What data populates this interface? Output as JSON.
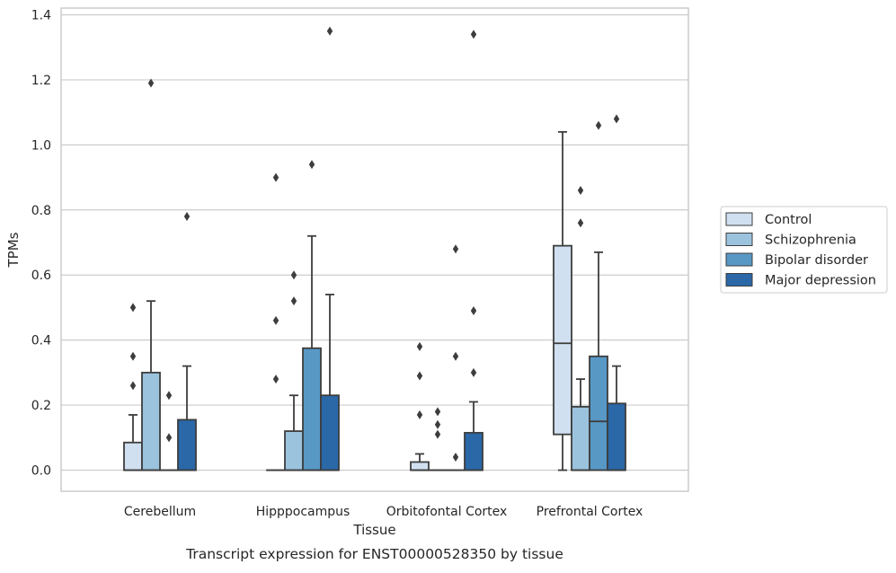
{
  "chart_data": {
    "type": "box",
    "title": "",
    "caption": "Transcript expression for ENST00000528350 by tissue",
    "xlabel": "Tissue",
    "ylabel": "TPMs",
    "ylim": [
      -0.065,
      1.42
    ],
    "yticks": [
      "0.0",
      "0.2",
      "0.4",
      "0.6",
      "0.8",
      "1.0",
      "1.2",
      "1.4"
    ],
    "grid": "horizontal",
    "legend_position": "right",
    "categories": [
      "Cerebellum",
      "Hipppocampus",
      "Orbitofontal Cortex",
      "Prefrontal Cortex"
    ],
    "series": [
      {
        "name": "Control",
        "color": "#d0e0f0",
        "boxes": [
          {
            "q1": 0.0,
            "median": 0.0,
            "q3": 0.085,
            "whisker_low": 0.0,
            "whisker_high": 0.17,
            "outliers": [
              0.26,
              0.35,
              0.5
            ]
          },
          {
            "q1": 0.0,
            "median": 0.0,
            "q3": 0.0,
            "whisker_low": 0.0,
            "whisker_high": 0.0,
            "outliers": [
              0.28,
              0.46,
              0.9
            ]
          },
          {
            "q1": 0.0,
            "median": 0.0,
            "q3": 0.025,
            "whisker_low": 0.0,
            "whisker_high": 0.05,
            "outliers": [
              0.17,
              0.29,
              0.38
            ]
          },
          {
            "q1": 0.11,
            "median": 0.39,
            "q3": 0.69,
            "whisker_low": 0.0,
            "whisker_high": 1.04,
            "outliers": []
          }
        ]
      },
      {
        "name": "Schizophrenia",
        "color": "#9bc3de",
        "boxes": [
          {
            "q1": 0.0,
            "median": 0.0,
            "q3": 0.3,
            "whisker_low": 0.0,
            "whisker_high": 0.52,
            "outliers": [
              1.19
            ]
          },
          {
            "q1": 0.0,
            "median": 0.0,
            "q3": 0.12,
            "whisker_low": 0.0,
            "whisker_high": 0.23,
            "outliers": [
              0.52,
              0.6
            ]
          },
          {
            "q1": 0.0,
            "median": 0.0,
            "q3": 0.0,
            "whisker_low": 0.0,
            "whisker_high": 0.0,
            "outliers": [
              0.11,
              0.14,
              0.18
            ]
          },
          {
            "q1": 0.0,
            "median": 0.0,
            "q3": 0.195,
            "whisker_low": 0.0,
            "whisker_high": 0.28,
            "outliers": [
              0.76,
              0.86
            ]
          }
        ]
      },
      {
        "name": "Bipolar disorder",
        "color": "#5898c5",
        "boxes": [
          {
            "q1": 0.0,
            "median": 0.0,
            "q3": 0.0,
            "whisker_low": 0.0,
            "whisker_high": 0.0,
            "outliers": [
              0.1,
              0.23
            ]
          },
          {
            "q1": 0.0,
            "median": 0.0,
            "q3": 0.375,
            "whisker_low": 0.0,
            "whisker_high": 0.72,
            "outliers": [
              0.94
            ]
          },
          {
            "q1": 0.0,
            "median": 0.0,
            "q3": 0.0,
            "whisker_low": 0.0,
            "whisker_high": 0.0,
            "outliers": [
              0.04,
              0.35,
              0.68
            ]
          },
          {
            "q1": 0.0,
            "median": 0.15,
            "q3": 0.35,
            "whisker_low": 0.0,
            "whisker_high": 0.67,
            "outliers": [
              1.06
            ]
          }
        ]
      },
      {
        "name": "Major depression",
        "color": "#2a68a8",
        "boxes": [
          {
            "q1": 0.0,
            "median": 0.0,
            "q3": 0.155,
            "whisker_low": 0.0,
            "whisker_high": 0.32,
            "outliers": [
              0.78
            ]
          },
          {
            "q1": 0.0,
            "median": 0.0,
            "q3": 0.23,
            "whisker_low": 0.0,
            "whisker_high": 0.54,
            "outliers": [
              1.35
            ]
          },
          {
            "q1": 0.0,
            "median": 0.0,
            "q3": 0.115,
            "whisker_low": 0.0,
            "whisker_high": 0.21,
            "outliers": [
              0.3,
              0.49,
              1.34
            ]
          },
          {
            "q1": 0.0,
            "median": 0.0,
            "q3": 0.205,
            "whisker_low": 0.0,
            "whisker_high": 0.32,
            "outliers": [
              1.08
            ]
          }
        ]
      }
    ]
  }
}
